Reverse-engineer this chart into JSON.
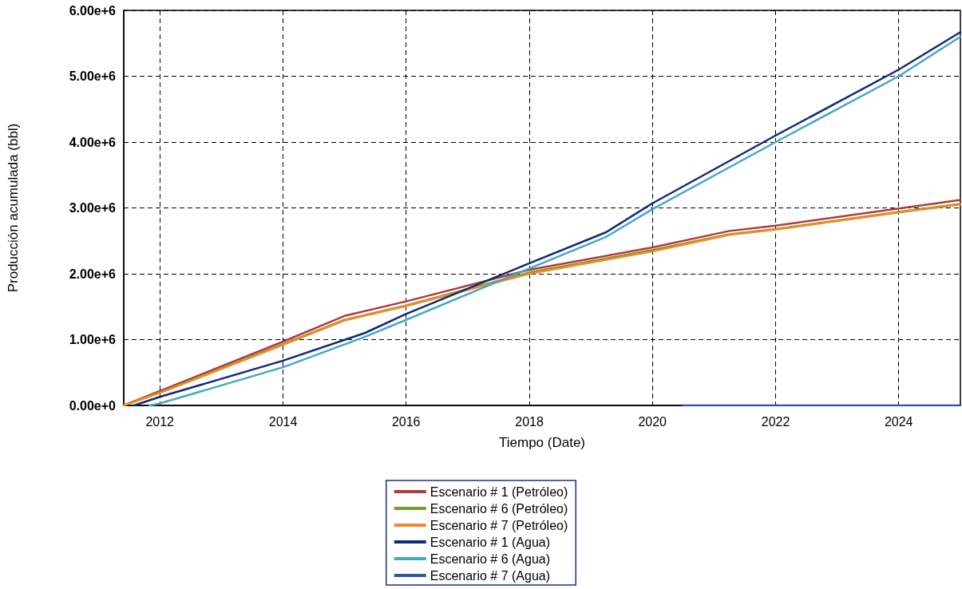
{
  "chart_data": {
    "type": "line",
    "xlabel": "Tiempo (Date)",
    "ylabel": "Producción acumulada (bbl)",
    "xlim": [
      "2011-06",
      "2025-01"
    ],
    "xticks": [
      "2012",
      "2014",
      "2016",
      "2018",
      "2020",
      "2022",
      "2024"
    ],
    "ylim": [
      0,
      6000000
    ],
    "yticks": [
      {
        "value": 0,
        "label": "0.00e+0"
      },
      {
        "value": 1000000,
        "label": "1.00e+6"
      },
      {
        "value": 2000000,
        "label": "2.00e+6"
      },
      {
        "value": 3000000,
        "label": "3.00e+6"
      },
      {
        "value": 4000000,
        "label": "4.00e+6"
      },
      {
        "value": 5000000,
        "label": "5.00e+6"
      },
      {
        "value": 6000000,
        "label": "6.00e+6"
      }
    ],
    "grid": true,
    "legend": "bottom",
    "marker": "none",
    "line_style": "solid",
    "series": [
      {
        "name": "Escenario # 1 (Petróleo)",
        "color": "#b23a3a",
        "x": [
          "2011-06",
          "2012-01",
          "2014-01",
          "2015-01",
          "2016-01",
          "2018-01",
          "2020-01",
          "2021-04",
          "2022-01",
          "2024-01",
          "2025-01"
        ],
        "values": [
          0,
          220000,
          970000,
          1360000,
          1580000,
          2060000,
          2400000,
          2650000,
          2730000,
          2990000,
          3120000
        ]
      },
      {
        "name": "Escenario # 6 (Petróleo)",
        "color": "#7a9a2e",
        "x": [
          "2011-06",
          "2012-01",
          "2014-01",
          "2015-01",
          "2016-01",
          "2018-01",
          "2020-01",
          "2021-04",
          "2022-01",
          "2024-01",
          "2025-01"
        ],
        "values": [
          0,
          200000,
          930000,
          1300000,
          1520000,
          2020000,
          2360000,
          2600000,
          2680000,
          2940000,
          3060000
        ]
      },
      {
        "name": "Escenario # 7 (Petróleo)",
        "color": "#f08a2c",
        "x": [
          "2011-06",
          "2012-01",
          "2014-01",
          "2015-01",
          "2016-01",
          "2018-01",
          "2020-01",
          "2021-04",
          "2022-01",
          "2024-01",
          "2025-01"
        ],
        "values": [
          0,
          190000,
          920000,
          1290000,
          1510000,
          2000000,
          2340000,
          2590000,
          2670000,
          2930000,
          3050000
        ]
      },
      {
        "name": "Escenario # 1 (Agua)",
        "color": "#0f2a78",
        "x": [
          "2011-08",
          "2012-01",
          "2014-01",
          "2015-05",
          "2016-01",
          "2018-01",
          "2019-04",
          "2020-01",
          "2022-01",
          "2024-01",
          "2025-01"
        ],
        "values": [
          0,
          130000,
          680000,
          1100000,
          1390000,
          2160000,
          2630000,
          3070000,
          4100000,
          5100000,
          5670000
        ]
      },
      {
        "name": "Escenario # 6 (Agua)",
        "color": "#45a8c2",
        "x": [
          "2011-11",
          "2012-01",
          "2014-01",
          "2015-05",
          "2016-01",
          "2018-01",
          "2019-04",
          "2020-01",
          "2022-01",
          "2024-01",
          "2025-01"
        ],
        "values": [
          0,
          30000,
          580000,
          1040000,
          1300000,
          2080000,
          2560000,
          2980000,
          4000000,
          5000000,
          5600000
        ]
      },
      {
        "name": "Escenario # 7 (Agua)",
        "color": "#2f56a6",
        "x": [
          "2020-07",
          "2023-04",
          "2025-01"
        ],
        "values": [
          0,
          0,
          0
        ]
      }
    ]
  }
}
